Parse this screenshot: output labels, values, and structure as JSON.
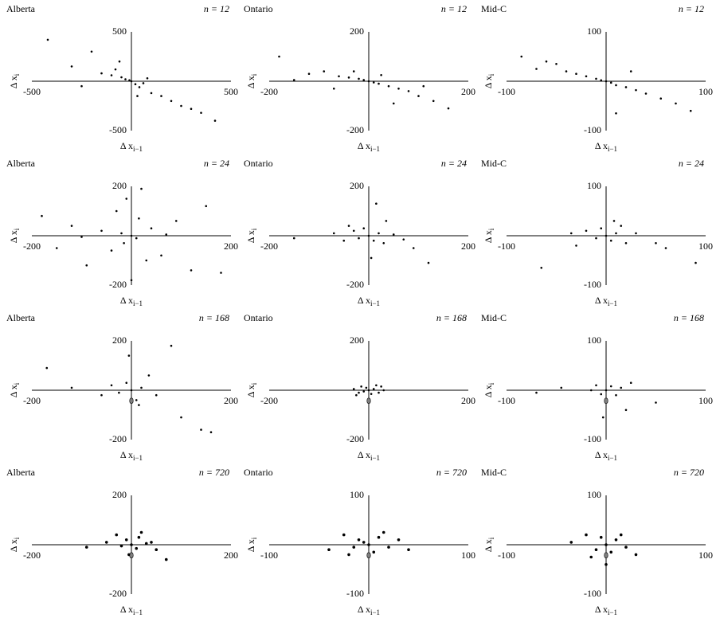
{
  "chart_data": [
    {
      "type": "scatter",
      "title": "Alberta",
      "annotation": "n = 12",
      "xlabel": "Δ x",
      "xlabel_sub": "i−1",
      "ylabel": "Δ x",
      "ylabel_sub": "i",
      "xlim": [
        -500,
        500
      ],
      "ylim": [
        -500,
        500
      ],
      "xticks": [
        -500,
        500
      ],
      "yticks": [
        -500,
        500
      ],
      "color": "#000000",
      "x": [
        -420,
        -300,
        -200,
        -150,
        -100,
        -80,
        -50,
        -30,
        -10,
        0,
        20,
        40,
        60,
        100,
        150,
        200,
        250,
        300,
        350,
        420,
        -250,
        -60,
        30,
        80
      ],
      "y": [
        420,
        150,
        300,
        80,
        60,
        120,
        40,
        20,
        10,
        0,
        -30,
        -60,
        -20,
        -120,
        -150,
        -200,
        -250,
        -280,
        -320,
        -400,
        -50,
        200,
        -150,
        30
      ]
    },
    {
      "type": "scatter",
      "title": "Ontario",
      "annotation": "n = 12",
      "xlabel": "Δ x",
      "xlabel_sub": "i−1",
      "ylabel": "Δ x",
      "ylabel_sub": "i",
      "xlim": [
        -200,
        200
      ],
      "ylim": [
        -200,
        200
      ],
      "xticks": [
        -200,
        200
      ],
      "yticks": [
        -200,
        200
      ],
      "color": "#000000",
      "x": [
        -180,
        -120,
        -90,
        -60,
        -40,
        -20,
        -10,
        0,
        10,
        20,
        40,
        60,
        80,
        100,
        130,
        160,
        -150,
        50,
        110,
        -70,
        25,
        -30
      ],
      "y": [
        100,
        30,
        40,
        20,
        15,
        10,
        5,
        0,
        -5,
        -10,
        -20,
        -30,
        -40,
        -60,
        -80,
        -110,
        5,
        -90,
        -20,
        -30,
        25,
        40
      ]
    },
    {
      "type": "scatter",
      "title": "Mid-C",
      "annotation": "n = 12",
      "xlabel": "Δ x",
      "xlabel_sub": "i−1",
      "ylabel": "Δ x",
      "ylabel_sub": "i",
      "xlim": [
        -100,
        100
      ],
      "ylim": [
        -100,
        100
      ],
      "xticks": [
        -100,
        100
      ],
      "yticks": [
        -100,
        100
      ],
      "color": "#000000",
      "x": [
        -85,
        -70,
        -50,
        -40,
        -30,
        -20,
        -10,
        -5,
        0,
        5,
        10,
        20,
        30,
        40,
        55,
        70,
        85,
        -60,
        10,
        25
      ],
      "y": [
        50,
        25,
        35,
        20,
        15,
        10,
        5,
        2,
        0,
        -3,
        -8,
        -12,
        -18,
        -25,
        -35,
        -45,
        -60,
        40,
        -65,
        20
      ]
    },
    {
      "type": "scatter",
      "title": "Alberta",
      "annotation": "n = 24",
      "xlabel": "Δ x",
      "xlabel_sub": "i−1",
      "ylabel": "Δ x",
      "ylabel_sub": "i",
      "xlim": [
        -200,
        200
      ],
      "ylim": [
        -200,
        200
      ],
      "xticks": [
        -200,
        200
      ],
      "yticks": [
        -200,
        200
      ],
      "color": "#000000",
      "x": [
        -180,
        -150,
        -120,
        -90,
        -60,
        -40,
        -20,
        -10,
        0,
        10,
        20,
        40,
        60,
        90,
        120,
        150,
        180,
        -30,
        30,
        0,
        15,
        -15,
        70,
        -100
      ],
      "y": [
        80,
        -50,
        40,
        -120,
        20,
        -60,
        10,
        150,
        0,
        -10,
        190,
        30,
        -80,
        60,
        -140,
        120,
        -150,
        100,
        -100,
        -180,
        70,
        -30,
        5,
        -5
      ]
    },
    {
      "type": "scatter",
      "title": "Ontario",
      "annotation": "n = 24",
      "xlabel": "Δ x",
      "xlabel_sub": "i−1",
      "ylabel": "Δ x",
      "ylabel_sub": "i",
      "xlim": [
        -200,
        200
      ],
      "ylim": [
        -200,
        200
      ],
      "xticks": [
        -200,
        200
      ],
      "yticks": [
        -200,
        200
      ],
      "color": "#000000",
      "x": [
        -150,
        -70,
        -50,
        -30,
        -20,
        -10,
        0,
        10,
        20,
        30,
        50,
        70,
        90,
        120,
        -40,
        15,
        35,
        5
      ],
      "y": [
        -10,
        10,
        -20,
        20,
        -10,
        30,
        0,
        -20,
        10,
        -30,
        5,
        -15,
        -50,
        -110,
        40,
        130,
        60,
        -90
      ]
    },
    {
      "type": "scatter",
      "title": "Mid-C",
      "annotation": "n = 24",
      "xlabel": "Δ x",
      "xlabel_sub": "i−1",
      "ylabel": "Δ x",
      "ylabel_sub": "i",
      "xlim": [
        -100,
        100
      ],
      "ylim": [
        -100,
        100
      ],
      "xticks": [
        -100,
        100
      ],
      "yticks": [
        -100,
        100
      ],
      "color": "#000000",
      "x": [
        -65,
        -30,
        -20,
        -10,
        -5,
        0,
        5,
        10,
        15,
        20,
        30,
        50,
        60,
        90,
        -35,
        8
      ],
      "y": [
        -65,
        -20,
        10,
        -5,
        15,
        0,
        -10,
        5,
        20,
        -15,
        5,
        -15,
        -25,
        -55,
        5,
        30
      ]
    },
    {
      "type": "scatter",
      "title": "Alberta",
      "annotation": "n = 168",
      "xlabel": "Δ x",
      "xlabel_sub": "i−1",
      "ylabel": "Δ x",
      "ylabel_sub": "i",
      "xlim": [
        -200,
        200
      ],
      "ylim": [
        -200,
        200
      ],
      "xticks": [
        -200,
        {
          "value": 0,
          "label": "0"
        },
        200
      ],
      "yticks": [
        -200,
        200
      ],
      "color": "#000000",
      "x": [
        -170,
        -120,
        -60,
        -40,
        -25,
        -10,
        0,
        10,
        20,
        35,
        50,
        80,
        100,
        140,
        160,
        -5,
        15
      ],
      "y": [
        90,
        10,
        -20,
        20,
        -10,
        30,
        0,
        -40,
        10,
        60,
        -20,
        180,
        -110,
        -160,
        -170,
        140,
        -60
      ]
    },
    {
      "type": "scatter",
      "title": "Ontario",
      "annotation": "n = 168",
      "xlabel": "Δ x",
      "xlabel_sub": "i−1",
      "ylabel": "Δ x",
      "ylabel_sub": "i",
      "xlim": [
        -200,
        200
      ],
      "ylim": [
        -200,
        200
      ],
      "xticks": [
        -200,
        {
          "value": 0,
          "label": "0"
        },
        200
      ],
      "yticks": [
        -200,
        200
      ],
      "color": "#000000",
      "x": [
        -30,
        -20,
        -15,
        -10,
        -5,
        0,
        5,
        10,
        15,
        20,
        30,
        -25,
        25
      ],
      "y": [
        5,
        -10,
        15,
        -5,
        10,
        0,
        -15,
        5,
        20,
        -10,
        0,
        -20,
        15
      ]
    },
    {
      "type": "scatter",
      "title": "Mid-C",
      "annotation": "n = 168",
      "xlabel": "Δ x",
      "xlabel_sub": "i−1",
      "ylabel": "Δ x",
      "ylabel_sub": "i",
      "xlim": [
        -100,
        100
      ],
      "ylim": [
        -100,
        100
      ],
      "xticks": [
        -100,
        {
          "value": 0,
          "label": "0"
        },
        100
      ],
      "yticks": [
        -100,
        100
      ],
      "color": "#000000",
      "x": [
        -70,
        -45,
        -15,
        -10,
        -5,
        0,
        5,
        10,
        15,
        25,
        50,
        20,
        -3
      ],
      "y": [
        -5,
        5,
        0,
        10,
        -8,
        0,
        8,
        -10,
        5,
        15,
        -25,
        -40,
        -55
      ]
    },
    {
      "type": "scatter",
      "title": "Alberta",
      "annotation": "n = 720",
      "xlabel": "Δ x",
      "xlabel_sub": "i−1",
      "ylabel": "Δ x",
      "ylabel_sub": "i",
      "xlim": [
        -200,
        200
      ],
      "ylim": [
        -200,
        200
      ],
      "xticks": [
        -200,
        {
          "value": 0,
          "label": "0"
        },
        200
      ],
      "yticks": [
        -200,
        200
      ],
      "color": "#000000",
      "x": [
        -90,
        -50,
        -30,
        -20,
        -10,
        0,
        10,
        20,
        30,
        50,
        70,
        -5,
        15,
        40
      ],
      "y": [
        -10,
        10,
        40,
        -5,
        20,
        0,
        -15,
        50,
        5,
        -20,
        -60,
        -40,
        30,
        10
      ]
    },
    {
      "type": "scatter",
      "title": "Ontario",
      "annotation": "n = 720",
      "xlabel": "Δ x",
      "xlabel_sub": "i−1",
      "ylabel": "Δ x",
      "ylabel_sub": "i",
      "xlim": [
        -100,
        100
      ],
      "ylim": [
        -100,
        100
      ],
      "xticks": [
        -100,
        {
          "value": 0,
          "label": "0"
        },
        100
      ],
      "yticks": [
        -100,
        100
      ],
      "color": "#000000",
      "x": [
        -40,
        -25,
        -15,
        -10,
        -5,
        0,
        5,
        10,
        20,
        30,
        40,
        -20,
        15
      ],
      "y": [
        -10,
        20,
        -5,
        10,
        5,
        0,
        -15,
        15,
        -5,
        10,
        -10,
        -20,
        25
      ]
    },
    {
      "type": "scatter",
      "title": "Mid-C",
      "annotation": "n = 720",
      "xlabel": "Δ x",
      "xlabel_sub": "i−1",
      "ylabel": "Δ x",
      "ylabel_sub": "i",
      "xlim": [
        -100,
        100
      ],
      "ylim": [
        -100,
        100
      ],
      "xticks": [
        -100,
        {
          "value": 0,
          "label": "0"
        },
        100
      ],
      "yticks": [
        -100,
        100
      ],
      "color": "#000000",
      "x": [
        -35,
        -20,
        -10,
        -5,
        0,
        5,
        10,
        20,
        30,
        -15,
        15,
        0
      ],
      "y": [
        5,
        20,
        -10,
        15,
        0,
        -15,
        10,
        -5,
        -20,
        -25,
        20,
        -40
      ]
    }
  ]
}
